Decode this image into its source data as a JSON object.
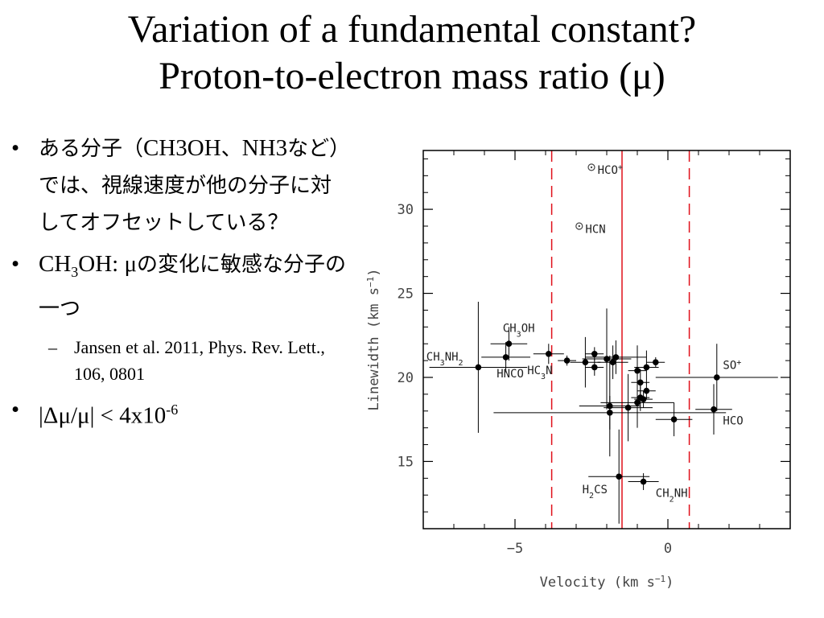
{
  "slide": {
    "title_line1": "Variation of a fundamental constant?",
    "title_line2": "Proton-to-electron mass ratio (μ)",
    "bullet1": {
      "prefix": "ある分子（",
      "molecules": "CH3OH",
      "sep": "、",
      "molecules2": "NH3",
      "suffix": "など）では、視線速度が他の分子に対してオフセットしている？"
    },
    "bullet2": {
      "formula_a": "CH",
      "formula_sub": "3",
      "formula_b": "OH: μ",
      "suffix": "の変化に敏感な分子の一つ"
    },
    "sub_bullet": "Jansen et al. 2011, Phys. Rev. Lett., 106, 0801",
    "bullet3": {
      "text": "|Δμ/μ| < 4x10",
      "exponent": "-6"
    }
  },
  "chart_data": {
    "type": "scatter",
    "xlabel": "Velocity (km s",
    "xlabel_sup": "−1",
    "xlabel_end": ")",
    "ylabel": "Linewidth (km s",
    "ylabel_sup": "−1",
    "ylabel_end": ")",
    "xlim": [
      -8,
      4
    ],
    "ylim": [
      11,
      33.5
    ],
    "x_ticks": [
      -5,
      0
    ],
    "x_tick_labels": [
      "−5",
      "0"
    ],
    "y_ticks": [
      15,
      20,
      25,
      30
    ],
    "y_tick_labels": [
      "15",
      "20",
      "25",
      "30"
    ],
    "colors": {
      "frame": "#000000",
      "red": "#e0101a",
      "point": "#000000",
      "label": "#222222"
    },
    "vlines": [
      {
        "x": -1.5,
        "style": "solid"
      },
      {
        "x": -3.8,
        "style": "dashed"
      },
      {
        "x": 0.7,
        "style": "dashed"
      }
    ],
    "labeled_points": [
      {
        "x": -6.2,
        "y": 20.6,
        "xerr": 1.6,
        "yerr": 3.9,
        "label": "CH",
        "sub": "3",
        "label2": "NH",
        "sub2": "2",
        "marker": "filled",
        "lx": -7.9,
        "ly": 21.0
      },
      {
        "x": -5.2,
        "y": 22.0,
        "xerr": 0.6,
        "yerr": 1.0,
        "label": "CH",
        "sub": "3",
        "label2": "OH",
        "sub2": "",
        "marker": "filled",
        "lx": -5.4,
        "ly": 22.7
      },
      {
        "x": -5.3,
        "y": 21.2,
        "xerr": 0.8,
        "yerr": 0.9,
        "label": "HNCO",
        "sub": "",
        "label2": "",
        "sub2": "",
        "marker": "filled",
        "lx": -5.6,
        "ly": 20.0
      },
      {
        "x": -3.9,
        "y": 21.4,
        "xerr": 0.5,
        "yerr": 0.6,
        "label": "HC",
        "sub": "3",
        "label2": "N",
        "sub2": "",
        "marker": "filled",
        "lx": -4.6,
        "ly": 20.2
      },
      {
        "x": -0.8,
        "y": 13.8,
        "xerr": 0.5,
        "yerr": 0.5,
        "label": "CH",
        "sub": "2",
        "label2": "NH",
        "sub2": "",
        "marker": "filled",
        "lx": -0.4,
        "ly": 12.9
      },
      {
        "x": -1.6,
        "y": 14.1,
        "xerr": 1.0,
        "yerr": 2.8,
        "label": "H",
        "sub": "2",
        "label2": "CS",
        "sub2": "",
        "marker": "filled",
        "lx": -2.8,
        "ly": 13.1
      },
      {
        "x": 1.6,
        "y": 20.0,
        "xerr": 2.0,
        "yerr": 2.0,
        "label": "SO",
        "sub": "",
        "label2": "",
        "sub2": "",
        "sup": "+",
        "marker": "filled",
        "lx": 1.8,
        "ly": 20.5
      },
      {
        "x": 1.5,
        "y": 18.1,
        "xerr": 0.6,
        "yerr": 1.5,
        "label": "HCO",
        "sub": "",
        "label2": "",
        "sub2": "",
        "marker": "filled",
        "lx": 1.8,
        "ly": 17.2
      },
      {
        "x": -2.5,
        "y": 32.5,
        "xerr": 0,
        "yerr": 0,
        "label": "HCO",
        "sub": "",
        "label2": "",
        "sub2": "",
        "sup": "+",
        "marker": "open",
        "lx": -2.3,
        "ly": 32.1
      },
      {
        "x": -2.9,
        "y": 29.0,
        "xerr": 0,
        "yerr": 0,
        "label": "HCN",
        "sub": "",
        "label2": "",
        "sub2": "",
        "marker": "open",
        "lx": -2.7,
        "ly": 28.6
      }
    ],
    "unlabeled_points": [
      {
        "x": -3.3,
        "y": 21.0,
        "xerr": 0.3,
        "yerr": 0.3
      },
      {
        "x": -2.7,
        "y": 20.9,
        "xerr": 0.5,
        "yerr": 1.5
      },
      {
        "x": -2.4,
        "y": 21.4,
        "xerr": 0.3,
        "yerr": 0.4
      },
      {
        "x": -2.4,
        "y": 20.6,
        "xerr": 0.3,
        "yerr": 0.5
      },
      {
        "x": -2.0,
        "y": 21.1,
        "xerr": 0.8,
        "yerr": 3.0
      },
      {
        "x": -1.8,
        "y": 20.9,
        "xerr": 0.5,
        "yerr": 1.0
      },
      {
        "x": -1.7,
        "y": 21.2,
        "xerr": 1.0,
        "yerr": 1.0
      },
      {
        "x": -1.9,
        "y": 18.3,
        "xerr": 1.0,
        "yerr": 3.0
      },
      {
        "x": -1.9,
        "y": 17.9,
        "xerr": 3.8,
        "yerr": 1.0
      },
      {
        "x": -1.3,
        "y": 18.2,
        "xerr": 0.8,
        "yerr": 2.0
      },
      {
        "x": -1.0,
        "y": 18.5,
        "xerr": 1.2,
        "yerr": 1.5
      },
      {
        "x": -1.0,
        "y": 20.4,
        "xerr": 0.3,
        "yerr": 1.5
      },
      {
        "x": -0.9,
        "y": 19.7,
        "xerr": 0.3,
        "yerr": 0.8
      },
      {
        "x": -0.9,
        "y": 18.8,
        "xerr": 0.3,
        "yerr": 0.8
      },
      {
        "x": -0.7,
        "y": 20.6,
        "xerr": 0.4,
        "yerr": 1.0
      },
      {
        "x": -0.7,
        "y": 19.2,
        "xerr": 0.3,
        "yerr": 0.5
      },
      {
        "x": -0.8,
        "y": 18.7,
        "xerr": 0.3,
        "yerr": 0.5
      },
      {
        "x": -0.4,
        "y": 20.9,
        "xerr": 0.3,
        "yerr": 0.3
      },
      {
        "x": 0.2,
        "y": 17.5,
        "xerr": 0.6,
        "yerr": 1.0
      }
    ]
  }
}
